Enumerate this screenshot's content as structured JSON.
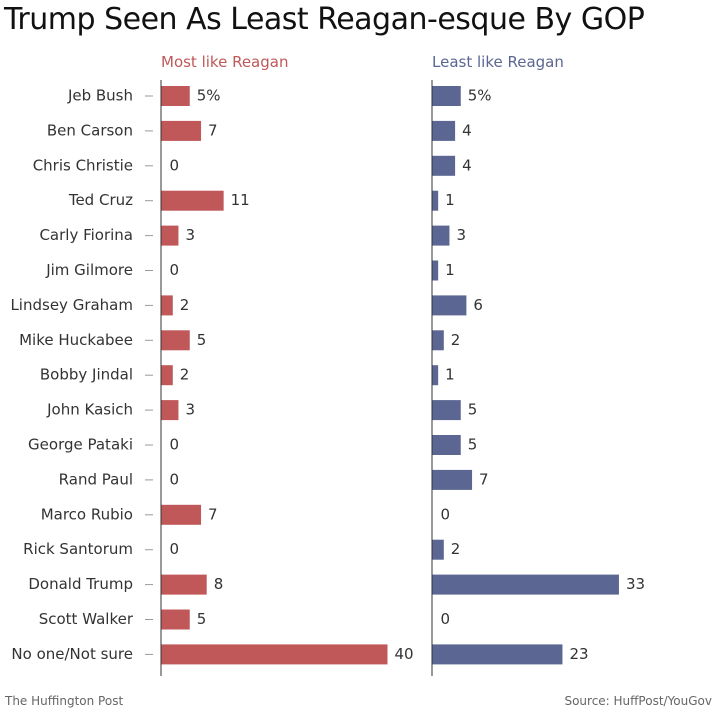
{
  "title": "Trump Seen As Least Reagan-esque By GOP",
  "footer": {
    "left": "The Huffington Post",
    "right": "Source: HuffPost/YouGov"
  },
  "colors": {
    "most": "#c0585a",
    "least": "#5b6792",
    "axis": "#333333",
    "text": "#333333"
  },
  "chart_data": {
    "type": "bar",
    "orientation": "horizontal",
    "title": "Trump Seen As Least Reagan-esque By GOP",
    "categories": [
      "Jeb Bush",
      "Ben Carson",
      "Chris Christie",
      "Ted Cruz",
      "Carly Fiorina",
      "Jim Gilmore",
      "Lindsey Graham",
      "Mike Huckabee",
      "Bobby Jindal",
      "John Kasich",
      "George Pataki",
      "Rand Paul",
      "Marco Rubio",
      "Rick Santorum",
      "Donald Trump",
      "Scott Walker",
      "No one/Not sure"
    ],
    "series": [
      {
        "name": "Most like Reagan",
        "values": [
          5,
          7,
          0,
          11,
          3,
          0,
          2,
          5,
          2,
          3,
          0,
          0,
          7,
          0,
          8,
          5,
          40
        ],
        "labels": [
          "5%",
          "7",
          "0",
          "11",
          "3",
          "0",
          "2",
          "5",
          "2",
          "3",
          "0",
          "0",
          "7",
          "0",
          "8",
          "5",
          "40"
        ],
        "color": "#c0585a"
      },
      {
        "name": "Least like Reagan",
        "values": [
          5,
          4,
          4,
          1,
          3,
          1,
          6,
          2,
          1,
          5,
          5,
          7,
          0,
          2,
          33,
          0,
          23
        ],
        "labels": [
          "5%",
          "4",
          "4",
          "1",
          "3",
          "1",
          "6",
          "2",
          "1",
          "5",
          "5",
          "7",
          "0",
          "2",
          "33",
          "0",
          "23"
        ],
        "color": "#5b6792"
      }
    ],
    "grid": false,
    "legend": "panel headers"
  }
}
